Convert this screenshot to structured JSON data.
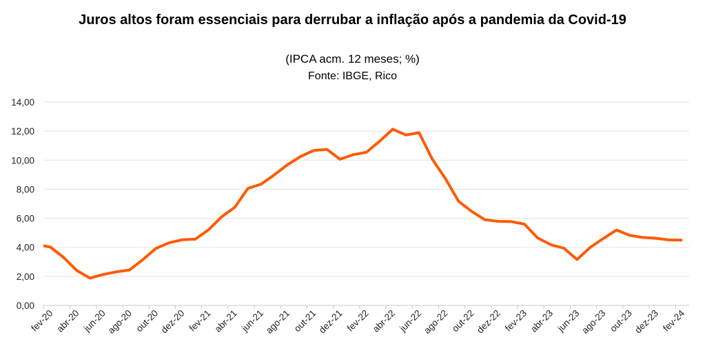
{
  "header": {
    "title": "Juros altos foram essenciais para derrubar a inflação após a pandemia da Covid-19",
    "subtitle": "(IPCA acm. 12 meses; %)",
    "source": "Fonte: IBGE, Rico"
  },
  "chart_data": {
    "type": "line",
    "title": "Juros altos foram essenciais para derrubar a inflação após a pandemia da Covid-19",
    "subtitle": "(IPCA acm. 12 meses; %)",
    "source": "Fonte: IBGE, Rico",
    "xlabel": "",
    "ylabel": "",
    "ylim": [
      0,
      14
    ],
    "yticks": [
      "0,00",
      "2,00",
      "4,00",
      "6,00",
      "8,00",
      "10,00",
      "12,00",
      "14,00"
    ],
    "grid": true,
    "legend": "none",
    "line_color": "#FF5A00",
    "x": [
      "jan-20",
      "fev-20",
      "mar-20",
      "abr-20",
      "mai-20",
      "jun-20",
      "jul-20",
      "ago-20",
      "set-20",
      "out-20",
      "nov-20",
      "dez-20",
      "jan-21",
      "fev-21",
      "mar-21",
      "abr-21",
      "mai-21",
      "jun-21",
      "jul-21",
      "ago-21",
      "set-21",
      "out-21",
      "nov-21",
      "dez-21",
      "jan-22",
      "fev-22",
      "mar-22",
      "abr-22",
      "mai-22",
      "jun-22",
      "jul-22",
      "ago-22",
      "set-22",
      "out-22",
      "nov-22",
      "dez-22",
      "jan-23",
      "fev-23",
      "mar-23",
      "abr-23",
      "mai-23",
      "jun-23",
      "jul-23",
      "ago-23",
      "set-23",
      "out-23",
      "nov-23",
      "dez-23",
      "jan-24",
      "fev-24"
    ],
    "xtick_labels": [
      "fev-20",
      "abr-20",
      "jun-20",
      "ago-20",
      "out-20",
      "dez-20",
      "fev-21",
      "abr-21",
      "jun-21",
      "ago-21",
      "out-21",
      "dez-21",
      "fev-22",
      "abr-22",
      "jun-22",
      "ago-22",
      "out-22",
      "dez-22",
      "fev-23",
      "abr-23",
      "jun-23",
      "ago-23",
      "out-23",
      "dez-23",
      "fev-24"
    ],
    "series": [
      {
        "name": "IPCA acm. 12 meses",
        "values": [
          4.19,
          4.01,
          3.3,
          2.4,
          1.88,
          2.13,
          2.31,
          2.44,
          3.14,
          3.92,
          4.31,
          4.52,
          4.56,
          5.2,
          6.1,
          6.76,
          8.06,
          8.35,
          8.99,
          9.68,
          10.25,
          10.67,
          10.74,
          10.06,
          10.38,
          10.54,
          11.3,
          12.13,
          11.73,
          11.89,
          10.07,
          8.73,
          7.17,
          6.47,
          5.9,
          5.79,
          5.77,
          5.6,
          4.65,
          4.18,
          3.94,
          3.16,
          3.99,
          4.61,
          5.19,
          4.82,
          4.68,
          4.62,
          4.51,
          4.5
        ]
      }
    ]
  }
}
